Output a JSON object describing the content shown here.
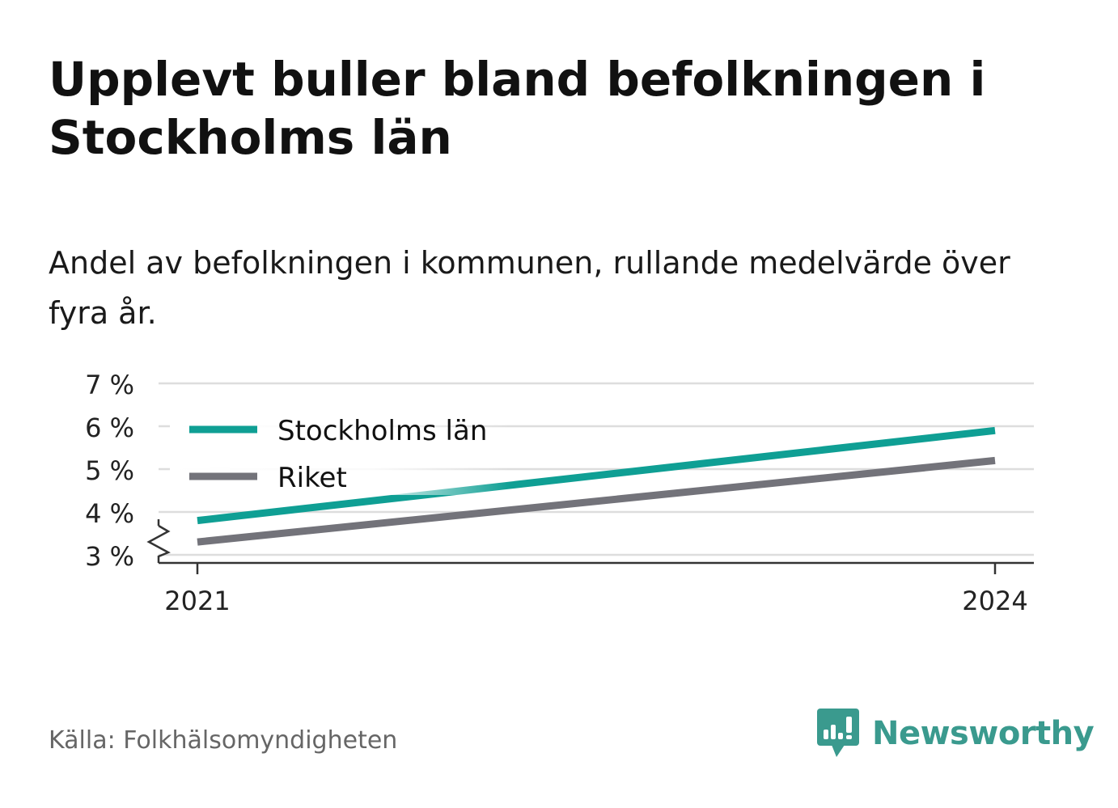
{
  "header": {
    "title": "Upplevt buller bland befolkningen i Stockholms län",
    "subtitle": "Andel av befolkningen i kommunen, rullande medelvärde över fyra år."
  },
  "footer": {
    "source": "Källa: Folkhälsomyndigheten",
    "brand": "Newsworthy"
  },
  "colors": {
    "stockholm": "#0f9f94",
    "riket": "#73737a",
    "grid": "#dddddd",
    "axis": "#333333",
    "brand": "#3a9a8e"
  },
  "chart_data": {
    "type": "line",
    "x": [
      2021,
      2024
    ],
    "x_tick_labels": [
      "2021",
      "2024"
    ],
    "y_ticks": [
      3,
      4,
      5,
      6,
      7
    ],
    "y_tick_labels": [
      "3 %",
      "4 %",
      "5 %",
      "6 %",
      "7 %"
    ],
    "ylim": [
      3,
      7
    ],
    "y_axis_break": true,
    "grid": true,
    "legend": "top-left",
    "series": [
      {
        "name": "Stockholms län",
        "values": [
          3.8,
          5.9
        ],
        "color": "#0f9f94"
      },
      {
        "name": "Riket",
        "values": [
          3.3,
          5.2
        ],
        "color": "#73737a"
      }
    ]
  }
}
